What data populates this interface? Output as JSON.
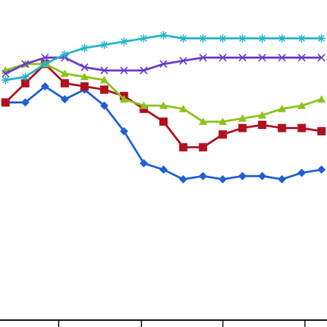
{
  "chart_data": {
    "type": "line",
    "title": "",
    "xlabel": "",
    "ylabel": "",
    "x": [
      1,
      2,
      3,
      4,
      5,
      6,
      7,
      8,
      9,
      10,
      11,
      12,
      13,
      14,
      15,
      16,
      17
    ],
    "xlim": [
      1,
      17
    ],
    "ylim": [
      0,
      100
    ],
    "grid": false,
    "legend": "none",
    "series": [
      {
        "color": "#1f5fd6",
        "marker": "diamond",
        "values": [
          68,
          68,
          73,
          69,
          72,
          67,
          59,
          49,
          47,
          44,
          45,
          44,
          45,
          45,
          44,
          46,
          47
        ]
      },
      {
        "color": "#b01020",
        "marker": "square",
        "values": [
          68,
          74,
          80,
          74,
          73,
          72,
          70,
          66,
          62,
          54,
          54,
          58,
          60,
          61,
          60,
          60,
          59
        ]
      },
      {
        "color": "#8cc21c",
        "marker": "triangle",
        "values": [
          78,
          80,
          80,
          77,
          76,
          75,
          69,
          67,
          67,
          66,
          62,
          62,
          63,
          64,
          66,
          67,
          69
        ]
      },
      {
        "color": "#6a3cc8",
        "marker": "x",
        "values": [
          77,
          80,
          82,
          82,
          79,
          78,
          78,
          78,
          80,
          81,
          82,
          82,
          82,
          82,
          82,
          82,
          82
        ]
      },
      {
        "color": "#22b5c8",
        "marker": "asterisk",
        "values": [
          75,
          76,
          80,
          83,
          85,
          86,
          87,
          88,
          89,
          88,
          88,
          88,
          88,
          88,
          88,
          88,
          88
        ]
      }
    ]
  }
}
